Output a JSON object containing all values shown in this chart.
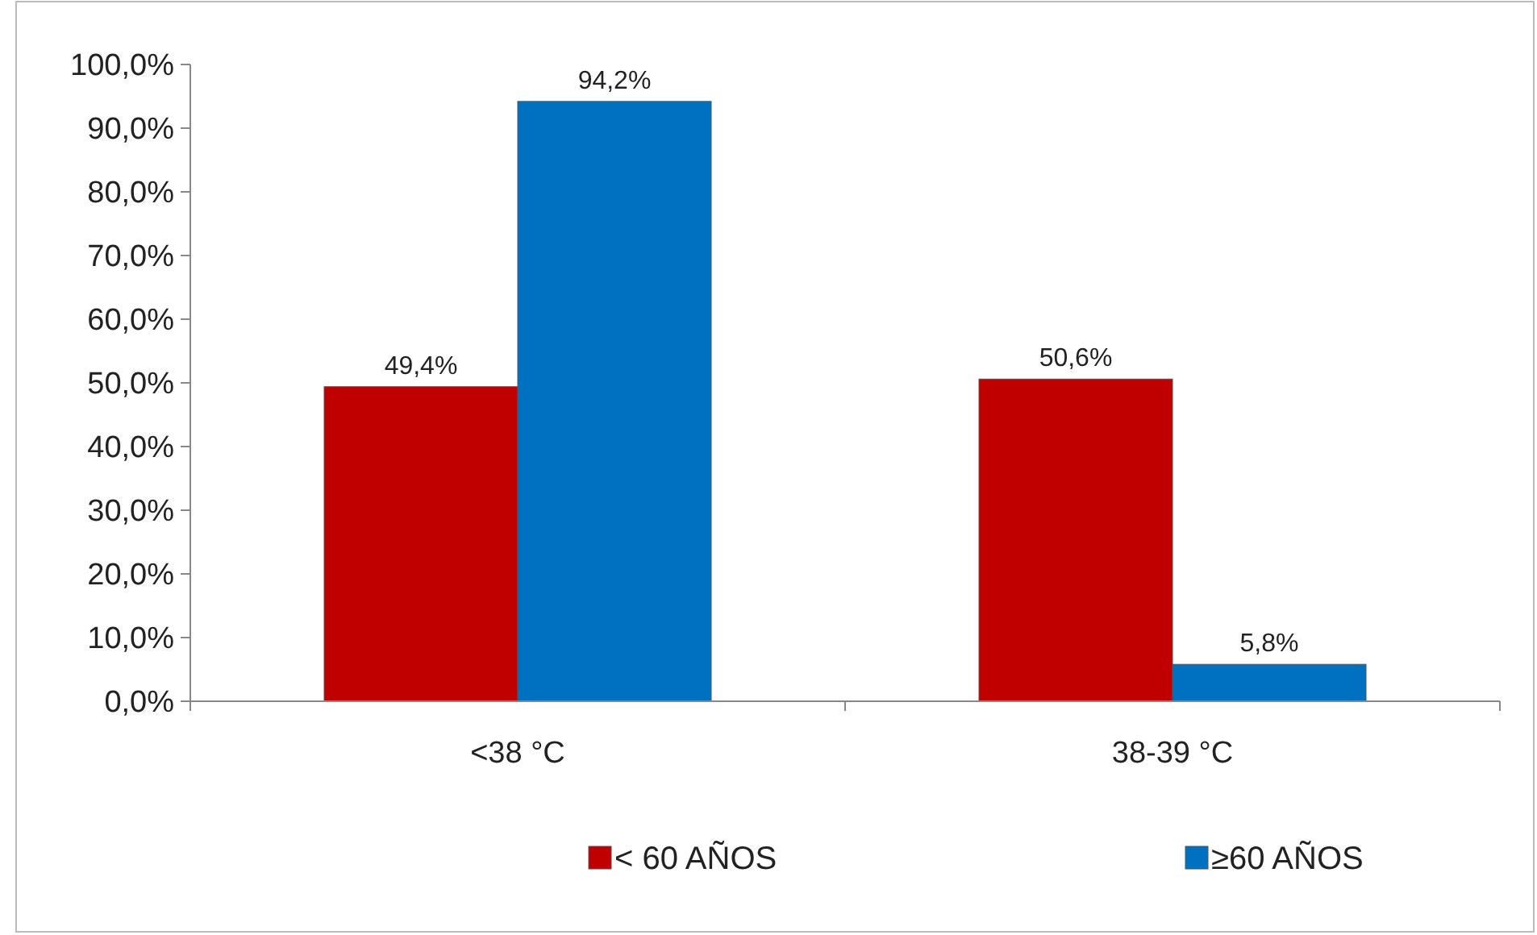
{
  "chart_data": {
    "type": "bar",
    "categories": [
      "<38 °C",
      "38-39 °C"
    ],
    "series": [
      {
        "name": "< 60 AÑOS",
        "color": "#c00000",
        "values": [
          49.4,
          50.6
        ],
        "value_labels": [
          "49,4%",
          "50,6%"
        ]
      },
      {
        "name": "≥60 AÑOS",
        "color": "#0070c0",
        "values": [
          94.2,
          5.8
        ],
        "value_labels": [
          "94,2%",
          "5,8%"
        ]
      }
    ],
    "ylim": [
      0,
      100
    ],
    "yticks": [
      {
        "value": 0,
        "label": "0,0%"
      },
      {
        "value": 10,
        "label": "10,0%"
      },
      {
        "value": 20,
        "label": "20,0%"
      },
      {
        "value": 30,
        "label": "30,0%"
      },
      {
        "value": 40,
        "label": "40,0%"
      },
      {
        "value": 50,
        "label": "50,0%"
      },
      {
        "value": 60,
        "label": "60,0%"
      },
      {
        "value": 70,
        "label": "70,0%"
      },
      {
        "value": 80,
        "label": "80,0%"
      },
      {
        "value": 90,
        "label": "90,0%"
      },
      {
        "value": 100,
        "label": "100,0%"
      }
    ],
    "grid": false,
    "legend": "bottom"
  }
}
